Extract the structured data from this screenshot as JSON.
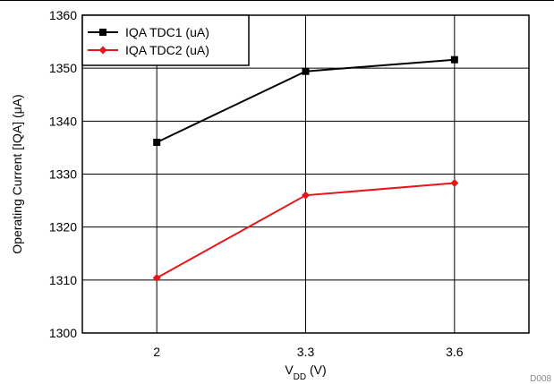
{
  "chart_data": {
    "type": "line",
    "title": "",
    "x": [
      "2",
      "3.3",
      "3.6"
    ],
    "xlabel": {
      "main": "V",
      "sub": "DD",
      "unit": " (V)"
    },
    "ylabel": "Operating Current [IQA] (μA)",
    "ylim": [
      1300,
      1360
    ],
    "yticks": [
      1300,
      1310,
      1320,
      1330,
      1340,
      1350,
      1360
    ],
    "grid": true,
    "legend_position": "top-left",
    "series": [
      {
        "name": "IQA TDC1 (uA)",
        "values": [
          1336,
          1349.4,
          1351.6
        ],
        "color": "#000000",
        "marker": "square"
      },
      {
        "name": "IQA TDC2 (uA)",
        "values": [
          1310.4,
          1326,
          1328.3
        ],
        "color": "#e8151b",
        "marker": "diamond"
      }
    ]
  },
  "footnote": "D008"
}
